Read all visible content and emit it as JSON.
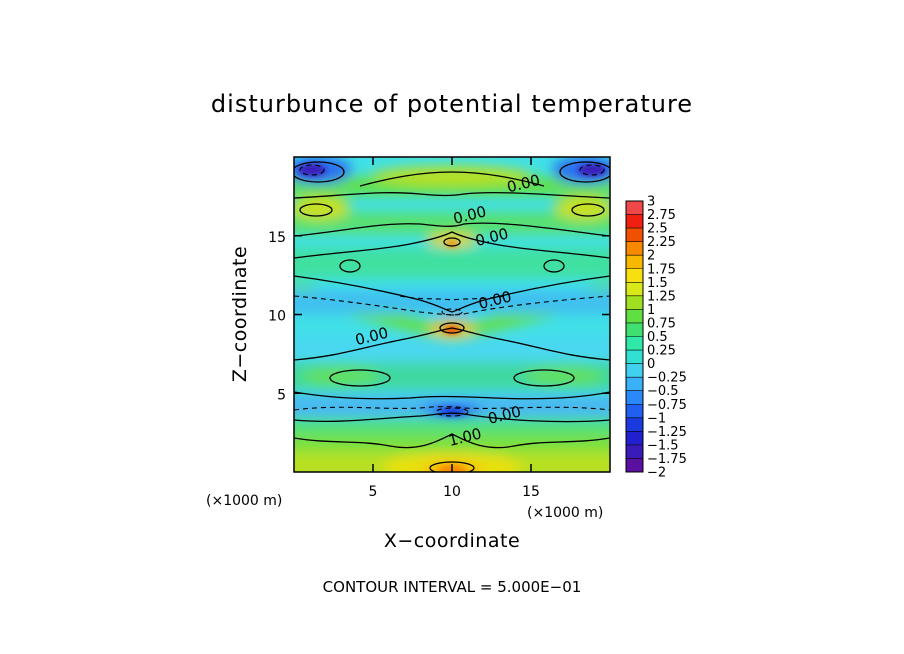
{
  "chart_data": {
    "type": "heatmap",
    "title": "disturbunce of potential temperature",
    "xlabel": "X−coordinate",
    "ylabel": "Z−coordinate",
    "x_unit": "(×1000 m)",
    "z_unit": "(×1000 m)",
    "xlim": [
      0,
      20
    ],
    "ylim": [
      0,
      20
    ],
    "x_ticks": [
      {
        "value": 5,
        "label": "5"
      },
      {
        "value": 10,
        "label": "10"
      },
      {
        "value": 15,
        "label": "15"
      }
    ],
    "y_ticks": [
      {
        "value": 5,
        "label": "5"
      },
      {
        "value": 10,
        "label": "10"
      },
      {
        "value": 15,
        "label": "15"
      }
    ],
    "colorbar": {
      "min": -2,
      "max": 3,
      "levels": [
        {
          "value": -2,
          "label": "−2",
          "color": "#5a0fa0"
        },
        {
          "value": -1.75,
          "label": "−1.75",
          "color": "#3a1ab8"
        },
        {
          "value": -1.5,
          "label": "−1.5",
          "color": "#2020d0"
        },
        {
          "value": -1.25,
          "label": "−1.25",
          "color": "#1a3ae0"
        },
        {
          "value": -1,
          "label": "−1",
          "color": "#2060f0"
        },
        {
          "value": -0.75,
          "label": "−0.75",
          "color": "#2a88f8"
        },
        {
          "value": -0.5,
          "label": "−0.5",
          "color": "#3ab0f8"
        },
        {
          "value": -0.25,
          "label": "−0.25",
          "color": "#40d0f0"
        },
        {
          "value": 0,
          "label": "0",
          "color": "#30e0d0"
        },
        {
          "value": 0.25,
          "label": "0.25",
          "color": "#30e8a8"
        },
        {
          "value": 0.5,
          "label": "0.5",
          "color": "#40e070"
        },
        {
          "value": 0.75,
          "label": "0.75",
          "color": "#60e040"
        },
        {
          "value": 1,
          "label": "1",
          "color": "#a0e020"
        },
        {
          "value": 1.25,
          "label": "1.25",
          "color": "#d8e818"
        },
        {
          "value": 1.5,
          "label": "1.5",
          "color": "#f8e010"
        },
        {
          "value": 1.75,
          "label": "1.75",
          "color": "#f8b800"
        },
        {
          "value": 2,
          "label": "2",
          "color": "#f88800"
        },
        {
          "value": 2.25,
          "label": "2.25",
          "color": "#f05000"
        },
        {
          "value": 2.5,
          "label": "2.5",
          "color": "#f02010"
        },
        {
          "value": 2.75,
          "label": "2.75",
          "color": "#f04848"
        },
        {
          "value": 3,
          "label": "3",
          "color": "#f89898"
        }
      ]
    },
    "contour_labels": [
      {
        "text": "0.00",
        "x": 14.6,
        "z": 18.0
      },
      {
        "text": "0.00",
        "x": 11.2,
        "z": 16.0
      },
      {
        "text": "0.00",
        "x": 12.6,
        "z": 14.6
      },
      {
        "text": "0.00",
        "x": 12.8,
        "z": 10.6
      },
      {
        "text": "0.00",
        "x": 5.0,
        "z": 8.3
      },
      {
        "text": "0.00",
        "x": 13.4,
        "z": 3.3
      },
      {
        "text": "1.00",
        "x": 10.9,
        "z": 1.9
      }
    ],
    "contour_interval_text": "CONTOUR INTERVAL = 5.000E−01"
  }
}
